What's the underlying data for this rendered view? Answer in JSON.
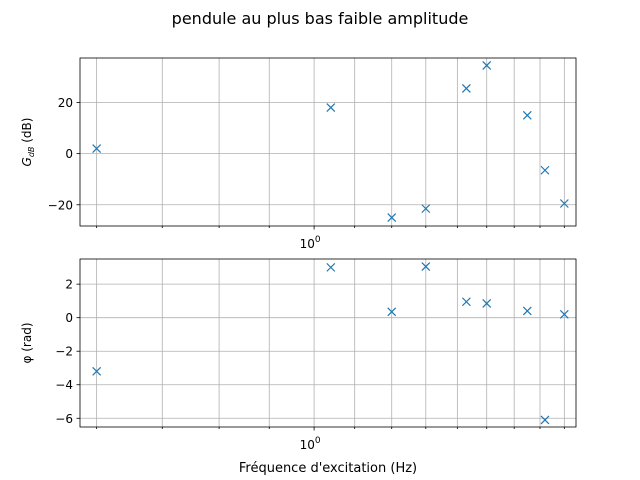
{
  "figure": {
    "title": "pendule au plus bas faible amplitude",
    "xlabel": "Fréquence d'excitation (Hz)"
  },
  "colors": {
    "marker": "#1f77b4",
    "grid": "#b0b0b0",
    "axis": "#000000"
  },
  "chart_data": [
    {
      "type": "scatter",
      "ylabel_main": "G",
      "ylabel_sub": "dB",
      "ylabel_suffix": " (dB)",
      "xscale": "log",
      "xlim": [
        0.577,
        1.85
      ],
      "ylim": [
        -28.3,
        37.4
      ],
      "grid": true,
      "marker": "x",
      "xtick_labels": [
        {
          "value": 1.0,
          "base": "10",
          "exp": "0"
        }
      ],
      "yticks": [
        -20,
        0,
        20
      ],
      "ytick_labels": [
        "−20",
        "0",
        "20"
      ],
      "x": [
        0.6,
        1.04,
        1.2,
        1.3,
        1.43,
        1.5,
        1.65,
        1.72,
        1.8
      ],
      "y": [
        2.0,
        18.0,
        -25.0,
        -21.5,
        25.5,
        34.5,
        15.0,
        -6.5,
        -19.5
      ]
    },
    {
      "type": "scatter",
      "ylabel": "φ (rad)",
      "xscale": "log",
      "xlim": [
        0.577,
        1.85
      ],
      "ylim": [
        -6.52,
        3.5
      ],
      "grid": true,
      "marker": "x",
      "xtick_labels": [
        {
          "value": 1.0,
          "base": "10",
          "exp": "0"
        }
      ],
      "yticks": [
        -6,
        -4,
        -2,
        0,
        2
      ],
      "ytick_labels": [
        "−6",
        "−4",
        "−2",
        "0",
        "2"
      ],
      "x": [
        0.6,
        1.04,
        1.2,
        1.3,
        1.43,
        1.5,
        1.65,
        1.72,
        1.8
      ],
      "y": [
        -3.2,
        3.0,
        0.35,
        3.05,
        0.95,
        0.85,
        0.4,
        -6.1,
        0.2
      ]
    }
  ]
}
